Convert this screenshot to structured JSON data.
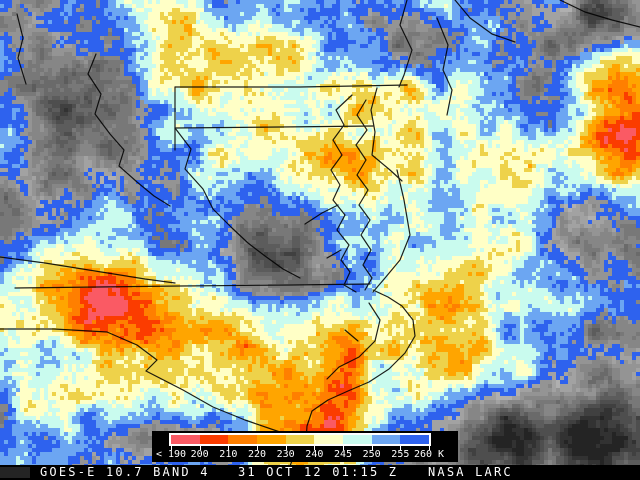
{
  "status_bar": {
    "title": "GOES-E 10.7 BAND 4",
    "timestamp": "31 OCT 12 01:15 Z",
    "credit": "NASA LARC"
  },
  "legend": {
    "unit": "K",
    "tick_labels": [
      "< 190",
      "200",
      "210",
      "220",
      "230",
      "240",
      "245",
      "250",
      "255",
      "260 K"
    ],
    "segments": [
      {
        "label": "< 200",
        "color": "#fa5a64"
      },
      {
        "label": "200-210",
        "color": "#fb3c00"
      },
      {
        "label": "210-220",
        "color": "#ff7f00"
      },
      {
        "label": "220-230",
        "color": "#ffa500"
      },
      {
        "label": "230-240",
        "color": "#eed24a"
      },
      {
        "label": "240-245",
        "color": "#ffffc6"
      },
      {
        "label": "245-250",
        "color": "#c9fbee"
      },
      {
        "label": "250-255",
        "color": "#6ca6f2"
      },
      {
        "label": "255-260",
        "color": "#2e62ee"
      }
    ]
  },
  "palette": {
    "background_black": "#000000",
    "text_white": "#ffffff",
    "boundary_line": "#000000",
    "gray_dark": "#2e2e2e",
    "gray_light": "#b6b6b6"
  }
}
